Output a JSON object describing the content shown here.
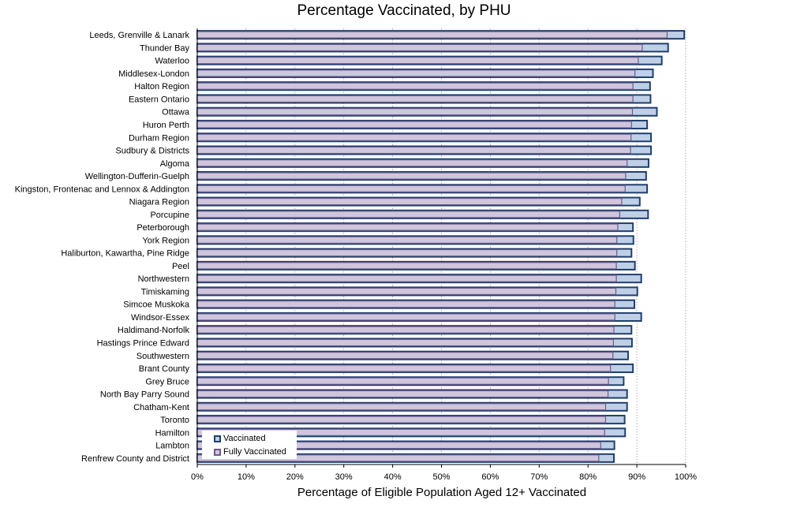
{
  "chart_data": {
    "type": "bar",
    "orientation": "horizontal",
    "title": "Percentage Vaccinated, by PHU",
    "xlabel": "Percentage of Eligible Population Aged 12+ Vaccinated",
    "ylabel": "",
    "xlim": [
      0,
      100
    ],
    "x_ticks": [
      "0%",
      "10%",
      "20%",
      "30%",
      "40%",
      "50%",
      "60%",
      "70%",
      "80%",
      "90%",
      "100%"
    ],
    "grid": "vertical dotted",
    "legend_position": "bottom-left",
    "colors": {
      "vaccinated_fill": "#bfcfe6",
      "vaccinated_border": "#1e3f6e",
      "fully_fill": "#cfc6dc",
      "fully_border": "#6e5a8e"
    },
    "categories": [
      "Leeds, Grenville & Lanark",
      "Thunder Bay",
      "Waterloo",
      "Middlesex-London",
      "Halton Region",
      "Eastern Ontario",
      "Ottawa",
      "Huron Perth",
      "Durham Region",
      "Sudbury & Districts",
      "Algoma",
      "Wellington-Dufferin-Guelph",
      "Kingston, Frontenac and Lennox & Addington",
      "Niagara Region",
      "Porcupine",
      "Peterborough",
      "York Region",
      "Haliburton, Kawartha, Pine Ridge",
      "Peel",
      "Northwestern",
      "Timiskaming",
      "Simcoe Muskoka",
      "Windsor-Essex",
      "Haldimand-Norfolk",
      "Hastings Prince Edward",
      "Southwestern",
      "Brant County",
      "Grey Bruce",
      "North Bay Parry Sound",
      "Chatham-Kent",
      "Toronto",
      "Hamilton",
      "Lambton",
      "Renfrew County and District"
    ],
    "series": [
      {
        "name": "Vaccinated",
        "values": [
          99.7,
          96.4,
          95.1,
          93.3,
          92.7,
          92.8,
          94.1,
          92.1,
          92.9,
          92.9,
          92.4,
          91.9,
          92.1,
          90.6,
          92.3,
          89.2,
          89.3,
          88.9,
          89.6,
          90.9,
          90.1,
          89.5,
          90.9,
          88.9,
          89.0,
          88.2,
          89.2,
          87.3,
          88.0,
          88.0,
          87.5,
          87.6,
          85.4,
          85.3
        ]
      },
      {
        "name": "Fully Vaccinated",
        "values": [
          96.2,
          91.1,
          90.3,
          89.6,
          89.2,
          89.2,
          89.1,
          88.9,
          88.8,
          88.7,
          88.0,
          87.7,
          87.6,
          86.9,
          86.5,
          86.1,
          85.9,
          85.9,
          85.8,
          85.8,
          85.7,
          85.5,
          85.5,
          85.3,
          85.2,
          85.1,
          84.6,
          84.2,
          84.1,
          83.6,
          83.6,
          83.4,
          82.6,
          82.2
        ]
      }
    ]
  }
}
